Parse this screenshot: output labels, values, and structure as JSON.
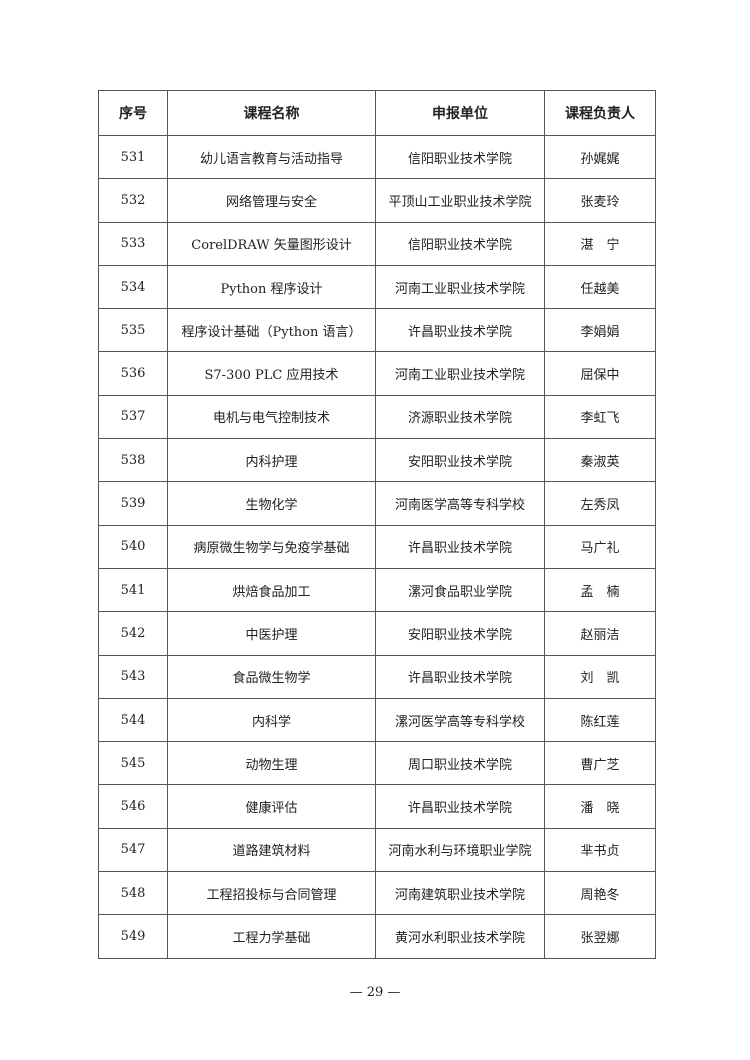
{
  "table": {
    "headers": [
      "序号",
      "课程名称",
      "申报单位",
      "课程负责人"
    ],
    "rows": [
      [
        "531",
        "幼儿语言教育与活动指导",
        "信阳职业技术学院",
        "孙娓娓"
      ],
      [
        "532",
        "网络管理与安全",
        "平顶山工业职业技术学院",
        "张麦玲"
      ],
      [
        "533",
        "CorelDRAW 矢量图形设计",
        "信阳职业技术学院",
        "湛　宁"
      ],
      [
        "534",
        "Python 程序设计",
        "河南工业职业技术学院",
        "任越美"
      ],
      [
        "535",
        "程序设计基础（Python 语言）",
        "许昌职业技术学院",
        "李娟娟"
      ],
      [
        "536",
        "S7-300 PLC 应用技术",
        "河南工业职业技术学院",
        "屈保中"
      ],
      [
        "537",
        "电机与电气控制技术",
        "济源职业技术学院",
        "李虹飞"
      ],
      [
        "538",
        "内科护理",
        "安阳职业技术学院",
        "秦淑英"
      ],
      [
        "539",
        "生物化学",
        "河南医学高等专科学校",
        "左秀凤"
      ],
      [
        "540",
        "病原微生物学与免疫学基础",
        "许昌职业技术学院",
        "马广礼"
      ],
      [
        "541",
        "烘焙食品加工",
        "漯河食品职业学院",
        "孟　楠"
      ],
      [
        "542",
        "中医护理",
        "安阳职业技术学院",
        "赵丽洁"
      ],
      [
        "543",
        "食品微生物学",
        "许昌职业技术学院",
        "刘　凯"
      ],
      [
        "544",
        "内科学",
        "漯河医学高等专科学校",
        "陈红莲"
      ],
      [
        "545",
        "动物生理",
        "周口职业技术学院",
        "曹广芝"
      ],
      [
        "546",
        "健康评估",
        "许昌职业技术学院",
        "潘　晓"
      ],
      [
        "547",
        "道路建筑材料",
        "河南水利与环境职业学院",
        "芈书贞"
      ],
      [
        "548",
        "工程招投标与合同管理",
        "河南建筑职业技术学院",
        "周艳冬"
      ],
      [
        "549",
        "工程力学基础",
        "黄河水利职业技术学院",
        "张翌娜"
      ]
    ]
  },
  "page_number": "— 29 —"
}
